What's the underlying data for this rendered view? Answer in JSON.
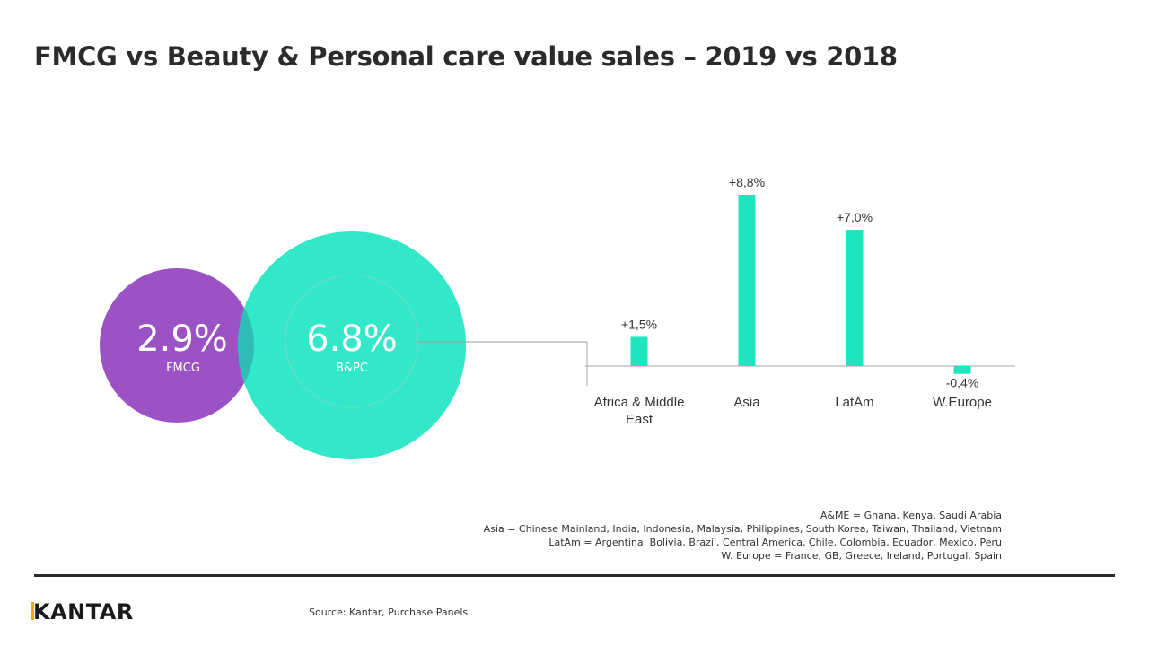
{
  "title": "FMCG vs Beauty & Personal care value sales – 2019 vs 2018",
  "venn": {
    "fmcg": {
      "value": "2.9%",
      "label": "FMCG",
      "color": "#9a52c4"
    },
    "bpc": {
      "value": "6.8%",
      "label": "B&PC",
      "color": "#33e8c8"
    }
  },
  "chart_data": {
    "type": "bar",
    "title": "",
    "categories": [
      "Africa & Middle East",
      "Asia",
      "LatAm",
      "W.Europe"
    ],
    "category_lines": [
      [
        "Africa & Middle",
        "East"
      ],
      [
        "Asia"
      ],
      [
        "LatAm"
      ],
      [
        "W.Europe"
      ]
    ],
    "values": [
      1.5,
      8.8,
      7.0,
      -0.4
    ],
    "data_labels": [
      "+1,5%",
      "+8,8%",
      "+7,0%",
      "-0,4%"
    ],
    "xlabel": "",
    "ylabel": "",
    "ylim": [
      -0.9,
      9.5
    ],
    "grid": false,
    "bar_color": "#1de5bd"
  },
  "notes": [
    "A&ME = Ghana,  Kenya, Saudi Arabia",
    "Asia = Chinese Mainland,  India,  Indonesia,  Malaysia,  Philippines,  South Korea, Taiwan, Thailand,  Vietnam",
    "LatAm = Argentina, Bolivia, Brazil, Central America, Chile, Colombia, Ecuador, Mexico, Peru",
    "W. Europe = France, GB, Greece, Ireland, Portugal, Spain"
  ],
  "brand": {
    "logo_k": "K",
    "logo_rest": "ANTAR"
  },
  "source": "Source: Kantar, Purchase Panels"
}
